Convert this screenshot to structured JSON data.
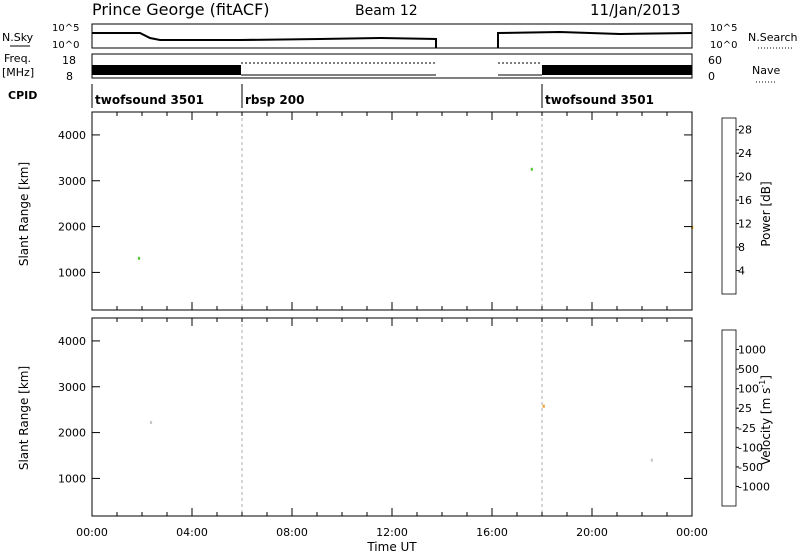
{
  "header": {
    "station": "Prince George (fitACF)",
    "beam": "Beam 12",
    "date": "11/Jan/2013"
  },
  "left_labels": {
    "nsky": "N.Sky",
    "freq_line1": "Freq.",
    "freq_line2": "[MHz]",
    "cpid": "CPID"
  },
  "right_labels": {
    "nsearch": "N.Search",
    "nave": "Nave"
  },
  "strip_ticks": {
    "noise_left": [
      "10^5",
      "10^0"
    ],
    "noise_right": [
      "10^5",
      "10^0"
    ],
    "freq_left": [
      "18",
      "8"
    ],
    "nave_right": [
      "60",
      "0"
    ]
  },
  "cpid_entries": [
    {
      "label": "twofsound 3501",
      "start_hour": 0.0
    },
    {
      "label": "rbsp 200",
      "start_hour": 6.0
    },
    {
      "label": "twofsound 3501",
      "start_hour": 18.0
    }
  ],
  "colors": {
    "power_scale": [
      "#1a2be0",
      "#2a3da8",
      "#3d6fa0",
      "#3f8f5a",
      "#5dc83c",
      "#f0c020",
      "#f07018",
      "#e83020",
      "#d01010"
    ],
    "velocity_scale": [
      "#1a2be0",
      "#2a4aa8",
      "#3b7f5c",
      "#6dcc3a",
      "#c8c8c8",
      "#c8c8c8",
      "#f0a030",
      "#f07018",
      "#e83020",
      "#d01010"
    ]
  },
  "chart_data": [
    {
      "type": "heatmap",
      "name": "power",
      "xlabel": "",
      "ylabel": "Slant Range [km]",
      "xlim_hours": [
        0,
        24
      ],
      "ylim": [
        180,
        4500
      ],
      "yticks": [
        1000,
        2000,
        3000,
        4000
      ],
      "colorbar": {
        "label": "Power [dB]",
        "ticks": [
          4,
          8,
          12,
          16,
          20,
          24,
          28
        ],
        "range": [
          0,
          30
        ]
      },
      "data_gaps_hours": [
        [
          13.85,
          16.0
        ]
      ]
    },
    {
      "type": "heatmap",
      "name": "velocity",
      "xlabel": "Time UT",
      "ylabel": "Slant Range [km]",
      "xlim_hours": [
        0,
        24
      ],
      "ylim": [
        180,
        4500
      ],
      "xticks": [
        "00:00",
        "04:00",
        "08:00",
        "12:00",
        "16:00",
        "20:00",
        "00:00"
      ],
      "yticks": [
        1000,
        2000,
        3000,
        4000
      ],
      "colorbar": {
        "label": "Velocity [m s-1]",
        "ticks": [
          "1000",
          "500",
          "100",
          "25",
          "-25",
          "-100",
          "-500",
          "-1000"
        ]
      },
      "data_gaps_hours": [
        [
          13.85,
          16.0
        ]
      ]
    }
  ],
  "axis_text": {
    "xlabel": "Time UT",
    "ylabel_top": "Slant Range [km]",
    "ylabel_bottom": "Slant Range [km]",
    "power_cbar_label": "Power [dB]",
    "velocity_cbar_label": "Velocity [m s",
    "velocity_cbar_sup": "-1",
    "velocity_cbar_close": "]"
  }
}
